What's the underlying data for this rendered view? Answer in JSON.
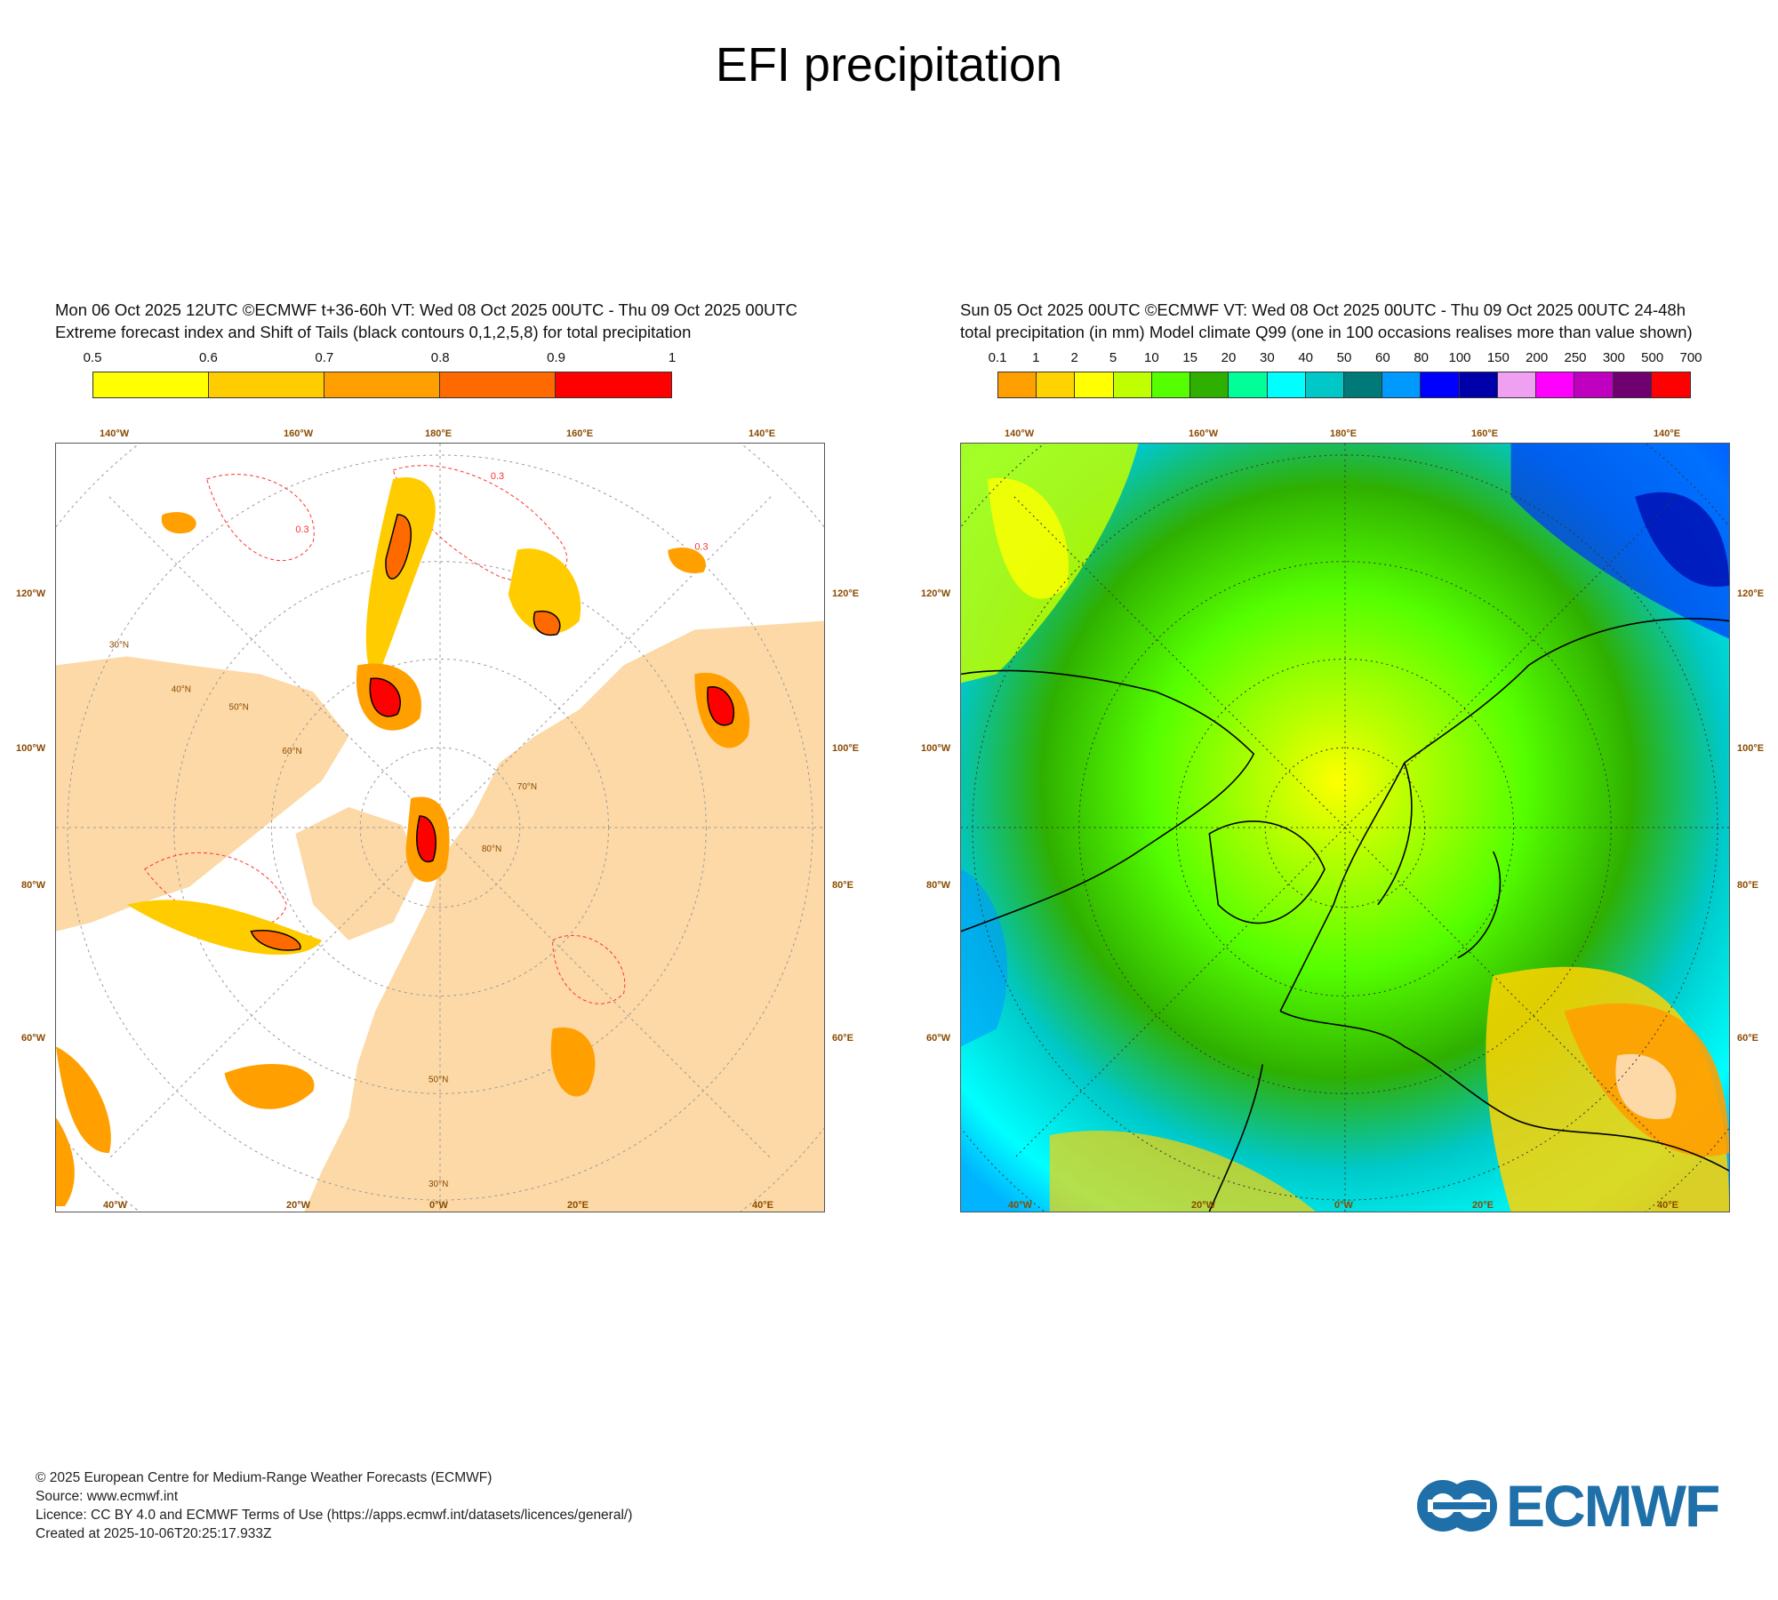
{
  "title": "EFI precipitation",
  "left_panel": {
    "header_line1": "Mon 06 Oct 2025 12UTC ©ECMWF t+36-60h  VT: Wed 08 Oct 2025 00UTC - Thu 09 Oct 2025 00UTC",
    "header_line2": "Extreme forecast index and Shift of Tails (black contours 0,1,2,5,8) for total precipitation",
    "colorbar": {
      "labels": [
        "0.5",
        "0.6",
        "0.7",
        "0.8",
        "0.9",
        "1"
      ],
      "colors": [
        "#ffff00",
        "#ffcc00",
        "#ffa000",
        "#ff6a00",
        "#ff0000"
      ]
    },
    "map_colors": {
      "land": "#fcd9a6",
      "ocean": "#ffffff",
      "contour": "#ff3333"
    },
    "contour_labels": [
      "0.3"
    ],
    "lon_labels_top": [
      "140°W",
      "160°W",
      "180°E",
      "160°E",
      "140°E"
    ],
    "lon_labels_bottom": [
      "40°W",
      "20°W",
      "0°W",
      "20°E",
      "40°E"
    ],
    "lat_labels_left": [
      "120°W",
      "100°W",
      "80°W",
      "60°W"
    ],
    "lat_labels_right": [
      "120°E",
      "100°E",
      "80°E",
      "60°E"
    ],
    "grid_lat_labels": [
      "30°N",
      "40°N",
      "50°N",
      "60°N",
      "70°N",
      "80°N"
    ]
  },
  "right_panel": {
    "header_line1": "Sun 05 Oct 2025 00UTC ©ECMWF VT: Wed 08 Oct 2025 00UTC - Thu 09 Oct 2025 00UTC   24-48h",
    "header_line2": "total precipitation (in mm)  Model climate Q99 (one in 100 occasions realises more than value shown)",
    "colorbar": {
      "labels": [
        "0.1",
        "1",
        "2",
        "5",
        "10",
        "15",
        "20",
        "30",
        "40",
        "50",
        "60",
        "80",
        "100",
        "150",
        "200",
        "250",
        "300",
        "500",
        "700"
      ],
      "colors": [
        "#ff9f00",
        "#ffd300",
        "#ffff00",
        "#bfff00",
        "#55ff00",
        "#2fb000",
        "#00ff99",
        "#00ffff",
        "#00c8c8",
        "#007a78",
        "#009aff",
        "#0000ff",
        "#0000aa",
        "#f0a0f0",
        "#ff00ff",
        "#c000c0",
        "#700070",
        "#ff0000"
      ]
    },
    "lon_labels_top": [
      "140°W",
      "160°W",
      "180°E",
      "160°E",
      "140°E"
    ],
    "lon_labels_bottom": [
      "40°W",
      "20°W",
      "0°W",
      "20°E",
      "40°E"
    ],
    "lat_labels_left": [
      "120°W",
      "100°W",
      "80°W",
      "60°W"
    ],
    "lat_labels_right": [
      "120°E",
      "100°E",
      "80°E",
      "60°E"
    ]
  },
  "footer": {
    "line1": "© 2025 European Centre for Medium-Range Weather Forecasts (ECMWF)",
    "line2": "Source: www.ecmwf.int",
    "line3": "Licence: CC BY 4.0 and ECMWF Terms of Use (https://apps.ecmwf.int/datasets/licences/general/)",
    "line4": "Created at 2025-10-06T20:25:17.933Z"
  },
  "logo": {
    "text": "ECMWF",
    "color": "#1f6fa8"
  }
}
